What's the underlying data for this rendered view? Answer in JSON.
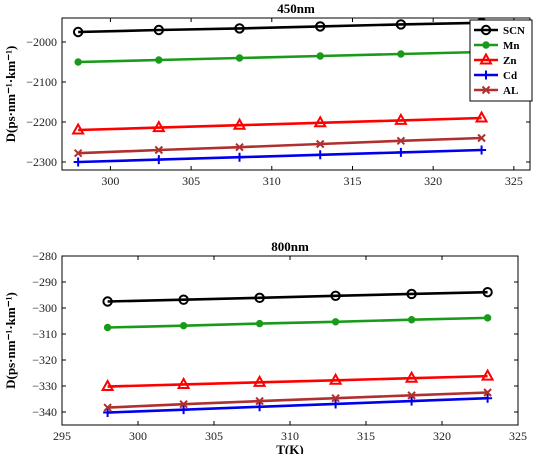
{
  "chart_data": [
    {
      "type": "line",
      "title": "450nm",
      "xlabel": "",
      "ylabel": "D(ps·nm⁻¹·km⁻¹)",
      "xlim": [
        297,
        326
      ],
      "ylim": [
        -2320,
        -1940
      ],
      "xticks": [
        300,
        305,
        310,
        315,
        320,
        325
      ],
      "yticks": [
        -2300,
        -2200,
        -2100,
        -2000
      ],
      "grid": false,
      "legend": "top-right",
      "x": [
        298,
        303,
        308,
        313,
        318,
        323
      ],
      "series": [
        {
          "name": "SCN",
          "color": "#000000",
          "marker": "circle",
          "values": [
            -1975,
            -1970,
            -1966,
            -1961,
            -1956,
            -1952
          ]
        },
        {
          "name": "Mn",
          "color": "#1a9a1a",
          "marker": "dot",
          "values": [
            -2050,
            -2045,
            -2040,
            -2035,
            -2030,
            -2025
          ]
        },
        {
          "name": "Zn",
          "color": "#ff0000",
          "marker": "triangle",
          "values": [
            -2220,
            -2214,
            -2208,
            -2202,
            -2196,
            -2190
          ]
        },
        {
          "name": "Cd",
          "color": "#0000ee",
          "marker": "plus",
          "values": [
            -2300,
            -2294,
            -2288,
            -2282,
            -2276,
            -2270
          ]
        },
        {
          "name": "AL",
          "color": "#b03030",
          "marker": "x",
          "values": [
            -2278,
            -2270,
            -2263,
            -2255,
            -2247,
            -2240
          ]
        }
      ]
    },
    {
      "type": "line",
      "title": "800nm",
      "xlabel": "T(K)",
      "ylabel": "D(ps·nm⁻¹·km⁻¹)",
      "xlim": [
        295,
        325
      ],
      "ylim": [
        -345,
        -280
      ],
      "xticks": [
        295,
        300,
        305,
        310,
        315,
        320,
        325
      ],
      "yticks": [
        -340,
        -330,
        -320,
        -310,
        -300,
        -290,
        -280
      ],
      "grid": false,
      "legend": "none",
      "x": [
        298,
        303,
        308,
        313,
        318,
        323
      ],
      "series": [
        {
          "color": "#000000",
          "marker": "circle",
          "values": [
            -297.5,
            -296.8,
            -296.1,
            -295.3,
            -294.6,
            -293.9
          ]
        },
        {
          "color": "#1a9a1a",
          "marker": "dot",
          "values": [
            -307.5,
            -306.8,
            -306.0,
            -305.3,
            -304.5,
            -303.8
          ]
        },
        {
          "color": "#ff0000",
          "marker": "triangle",
          "values": [
            -330.2,
            -329.4,
            -328.6,
            -327.8,
            -327.0,
            -326.2
          ]
        },
        {
          "color": "#0000ee",
          "marker": "plus",
          "values": [
            -340.2,
            -339.1,
            -338.0,
            -336.9,
            -335.8,
            -334.7
          ]
        },
        {
          "color": "#b03030",
          "marker": "x",
          "values": [
            -338.3,
            -337.0,
            -335.8,
            -334.7,
            -333.6,
            -332.5
          ]
        }
      ]
    }
  ]
}
